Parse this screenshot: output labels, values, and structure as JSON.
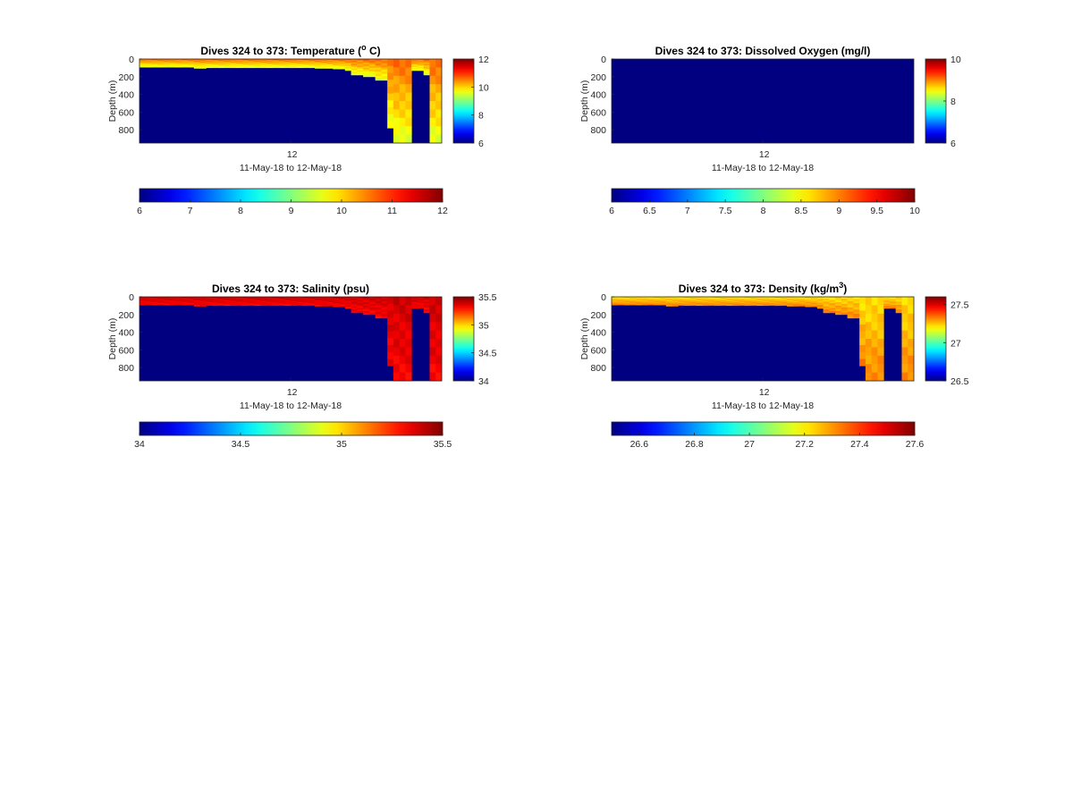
{
  "figure": {
    "background": "#ffffff",
    "colormap": "jet"
  },
  "chart_data": [
    {
      "type": "heatmap",
      "variable": "Temperature",
      "title": "Dives 324 to 373: Temperature (",
      "title_sup": "o",
      "title_tail": " C)",
      "ylabel": "Depth (m)",
      "xtick_labels": [
        "12"
      ],
      "xlabel": "11-May-18 to 12-May-18",
      "ylim": [
        0,
        950
      ],
      "yticks": [
        0,
        200,
        400,
        600,
        800
      ],
      "ytick_labels": [
        "0",
        "200",
        "400",
        "600",
        "800"
      ],
      "clim": [
        6,
        12
      ],
      "colorbar_ticks": [
        6,
        8,
        10,
        12
      ],
      "colorbar_labels": [
        "6",
        "8",
        "10",
        "12"
      ],
      "hbar_ticks": [
        6,
        7,
        8,
        9,
        10,
        11,
        12
      ],
      "hbar_labels": [
        "6",
        "7",
        "8",
        "9",
        "10",
        "11",
        "12"
      ],
      "n_profiles": 50,
      "nodata_value": 6,
      "profile_max_depth": [
        92,
        92,
        92,
        92,
        92,
        92,
        92,
        92,
        92,
        105,
        105,
        98,
        98,
        98,
        98,
        98,
        98,
        98,
        98,
        98,
        98,
        98,
        98,
        98,
        98,
        98,
        98,
        98,
        98,
        105,
        105,
        105,
        112,
        112,
        130,
        180,
        180,
        200,
        200,
        240,
        240,
        780,
        950,
        950,
        950,
        130,
        130,
        180,
        950,
        950
      ],
      "surface_value": 10.6,
      "deep_value": 9.6
    },
    {
      "type": "heatmap",
      "variable": "Dissolved Oxygen",
      "title": "Dives 324 to 373: Dissolved Oxygen (mg/l)",
      "ylabel": "Depth (m)",
      "xtick_labels": [
        "12"
      ],
      "xlabel": "11-May-18 to 12-May-18",
      "ylim": [
        0,
        950
      ],
      "yticks": [
        0,
        200,
        400,
        600,
        800
      ],
      "ytick_labels": [
        "0",
        "200",
        "400",
        "600",
        "800"
      ],
      "clim": [
        6,
        10
      ],
      "colorbar_ticks": [
        6,
        8,
        10
      ],
      "colorbar_labels": [
        "6",
        "8",
        "10"
      ],
      "hbar_ticks": [
        6,
        6.5,
        7,
        7.5,
        8,
        8.5,
        9,
        9.5,
        10
      ],
      "hbar_labels": [
        "6",
        "6.5",
        "7",
        "7.5",
        "8",
        "8.5",
        "9",
        "9.5",
        "10"
      ],
      "n_profiles": 50,
      "nodata_value": 6,
      "all_nodata": true
    },
    {
      "type": "heatmap",
      "variable": "Salinity",
      "title": "Dives 324 to 373: Salinity (psu)",
      "ylabel": "Depth (m)",
      "xtick_labels": [
        "12"
      ],
      "xlabel": "11-May-18 to 12-May-18",
      "ylim": [
        0,
        950
      ],
      "yticks": [
        0,
        200,
        400,
        600,
        800
      ],
      "ytick_labels": [
        "0",
        "200",
        "400",
        "600",
        "800"
      ],
      "clim": [
        34,
        35.5
      ],
      "colorbar_ticks": [
        34,
        34.5,
        35,
        35.5
      ],
      "colorbar_labels": [
        "34",
        "34.5",
        "35",
        "35.5"
      ],
      "hbar_ticks": [
        34,
        34.5,
        35,
        35.5
      ],
      "hbar_labels": [
        "34",
        "34.5",
        "35",
        "35.5"
      ],
      "n_profiles": 50,
      "nodata_value": 34,
      "profile_max_depth": [
        92,
        92,
        92,
        92,
        92,
        92,
        92,
        92,
        92,
        105,
        105,
        98,
        98,
        98,
        98,
        98,
        98,
        98,
        98,
        98,
        98,
        98,
        98,
        98,
        98,
        98,
        98,
        98,
        98,
        105,
        105,
        105,
        112,
        112,
        130,
        180,
        180,
        200,
        200,
        240,
        240,
        780,
        950,
        950,
        950,
        130,
        130,
        180,
        950,
        950
      ],
      "surface_value": 35.38,
      "deep_value": 35.32
    },
    {
      "type": "heatmap",
      "variable": "Density",
      "title": "Dives 324 to 373: Density (kg/m",
      "title_sup": "3",
      "title_tail": ")",
      "ylabel": "Depth (m)",
      "xtick_labels": [
        "12"
      ],
      "xlabel": "11-May-18 to 12-May-18",
      "ylim": [
        0,
        950
      ],
      "yticks": [
        0,
        200,
        400,
        600,
        800
      ],
      "ytick_labels": [
        "0",
        "200",
        "400",
        "600",
        "800"
      ],
      "clim": [
        26.5,
        27.6
      ],
      "colorbar_ticks": [
        26.5,
        27,
        27.5
      ],
      "colorbar_labels": [
        "26.5",
        "27",
        "27.5"
      ],
      "hbar_ticks": [
        26.6,
        26.8,
        27,
        27.2,
        27.4,
        27.6
      ],
      "hbar_labels": [
        "26.6",
        "26.8",
        "27",
        "27.2",
        "27.4",
        "27.6"
      ],
      "n_profiles": 50,
      "nodata_value": 26.5,
      "profile_max_depth": [
        92,
        92,
        92,
        92,
        92,
        92,
        92,
        92,
        92,
        105,
        105,
        98,
        98,
        98,
        98,
        98,
        98,
        98,
        98,
        98,
        98,
        98,
        98,
        98,
        98,
        98,
        98,
        98,
        98,
        105,
        105,
        105,
        112,
        112,
        130,
        180,
        180,
        200,
        200,
        240,
        240,
        780,
        950,
        950,
        950,
        130,
        130,
        180,
        950,
        950
      ],
      "surface_value": 27.22,
      "deep_value": 27.32
    }
  ]
}
